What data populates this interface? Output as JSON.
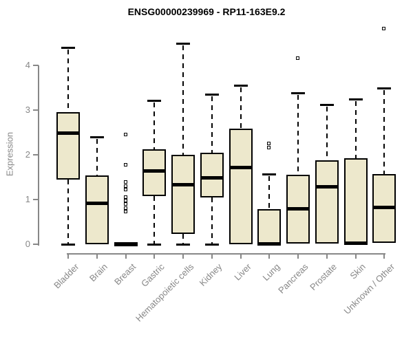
{
  "chart_data": {
    "type": "boxplot",
    "title": "ENSG00000239969 - RP11-163E9.2",
    "xlabel": "",
    "ylabel": "Expression",
    "ylim": [
      0,
      4.85
    ],
    "yticks": [
      0,
      1,
      2,
      3,
      4
    ],
    "grid": false,
    "legend": false,
    "categories": [
      "Bladder",
      "Brain",
      "Breast",
      "Gastric",
      "Hematopoietic cells",
      "Kidney",
      "Liver",
      "Lung",
      "Pancreas",
      "Prostate",
      "Skin",
      "Unknown / Other"
    ],
    "series": [
      {
        "category": "Bladder",
        "whisker_low": 0,
        "q1": 1.45,
        "median": 2.5,
        "q3": 2.95,
        "whisker_high": 4.4,
        "outliers": []
      },
      {
        "category": "Brain",
        "whisker_low": 0,
        "q1": 0,
        "median": 0.93,
        "q3": 1.54,
        "whisker_high": 2.4,
        "outliers": []
      },
      {
        "category": "Breast",
        "whisker_low": 0,
        "q1": 0,
        "median": 0.01,
        "q3": 0.02,
        "whisker_high": 0.02,
        "outliers": [
          2.45,
          1.77,
          1.38,
          1.3,
          1.22,
          1.05,
          0.97,
          0.89,
          0.8,
          0.72
        ]
      },
      {
        "category": "Gastric",
        "whisker_low": 0,
        "q1": 1.08,
        "median": 1.65,
        "q3": 2.12,
        "whisker_high": 3.22,
        "outliers": []
      },
      {
        "category": "Hematopoietic cells",
        "whisker_low": 0,
        "q1": 0.23,
        "median": 1.34,
        "q3": 2.0,
        "whisker_high": 4.5,
        "outliers": []
      },
      {
        "category": "Kidney",
        "whisker_low": 0,
        "q1": 1.05,
        "median": 1.5,
        "q3": 2.05,
        "whisker_high": 3.35,
        "outliers": []
      },
      {
        "category": "Liver",
        "whisker_low": 0,
        "q1": 0,
        "median": 1.72,
        "q3": 2.58,
        "whisker_high": 3.55,
        "outliers": []
      },
      {
        "category": "Lung",
        "whisker_low": 0,
        "q1": 0,
        "median": 0.02,
        "q3": 0.78,
        "whisker_high": 1.57,
        "outliers": [
          2.25,
          2.15
        ]
      },
      {
        "category": "Pancreas",
        "whisker_low": 0.02,
        "q1": 0.02,
        "median": 0.8,
        "q3": 1.56,
        "whisker_high": 3.38,
        "outliers": [
          4.15
        ]
      },
      {
        "category": "Prostate",
        "whisker_low": 0.02,
        "q1": 0.02,
        "median": 1.3,
        "q3": 1.87,
        "whisker_high": 3.12,
        "outliers": []
      },
      {
        "category": "Skin",
        "whisker_low": 0,
        "q1": 0,
        "median": 0.03,
        "q3": 1.92,
        "whisker_high": 3.25,
        "outliers": []
      },
      {
        "category": "Unknown / Other",
        "whisker_low": 0.03,
        "q1": 0.03,
        "median": 0.83,
        "q3": 1.57,
        "whisker_high": 3.5,
        "outliers": [
          4.82
        ]
      }
    ],
    "colors": {
      "box_fill": "#EDE8CC",
      "box_border": "#000000",
      "median": "#000000",
      "whisker": "#000000",
      "axis": "#878787",
      "tick_label": "#878787",
      "title": "#000000",
      "background": "#FFFFFF"
    }
  }
}
